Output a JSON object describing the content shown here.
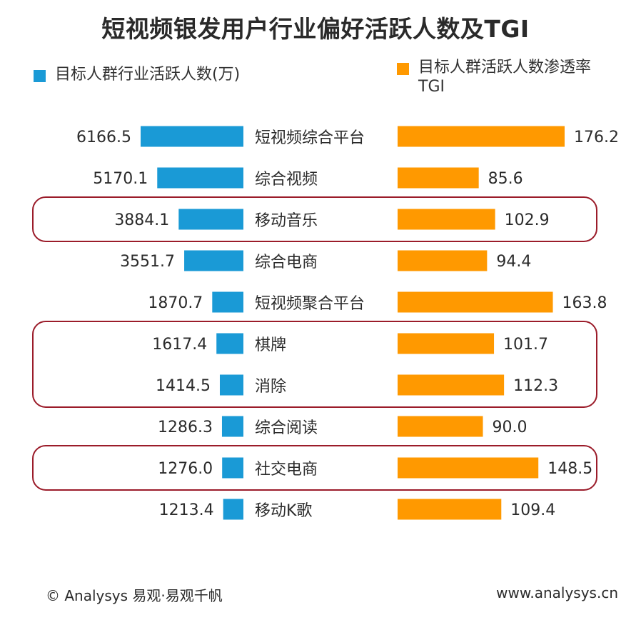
{
  "chart_data": {
    "type": "bar",
    "title": "短视频银发用户行业偏好活跃人数及TGI",
    "categories": [
      "短视频综合平台",
      "综合视频",
      "移动音乐",
      "综合电商",
      "短视频聚合平台",
      "棋牌",
      "消除",
      "综合阅读",
      "社交电商",
      "移动K歌"
    ],
    "series": [
      {
        "name": "目标人群行业活跃人数(万)",
        "color": "#1a9ad6",
        "values": [
          6166.5,
          5170.1,
          3884.1,
          3551.7,
          1870.7,
          1617.4,
          1414.5,
          1286.3,
          1276.0,
          1213.4
        ],
        "labels": [
          "6166.5",
          "5170.1",
          "3884.1",
          "3551.7",
          "1870.7",
          "1617.4",
          "1414.5",
          "1286.3",
          "1276.0",
          "1213.4"
        ]
      },
      {
        "name": "目标人群活跃人数渗透率TGI",
        "color": "#ff9900",
        "values": [
          176.2,
          85.6,
          102.9,
          94.4,
          163.8,
          101.7,
          112.3,
          90.0,
          148.5,
          109.4
        ],
        "labels": [
          "176.2",
          "85.6",
          "102.9",
          "94.4",
          "163.8",
          "101.7",
          "112.3",
          "90.0",
          "148.5",
          "109.4"
        ]
      }
    ],
    "highlight_groups": [
      [
        "移动音乐"
      ],
      [
        "棋牌",
        "消除"
      ],
      [
        "社交电商"
      ]
    ],
    "highlight_color": "#9b1c2a",
    "legend": {
      "left_label": "目标人群行业活跃人数(万)",
      "right_label_line1": "目标人群活跃人数渗透率",
      "right_label_line2": "TGI"
    }
  },
  "footer": {
    "left": "© Analysys 易观·易观千帆",
    "right": "www.analysys.cn"
  }
}
